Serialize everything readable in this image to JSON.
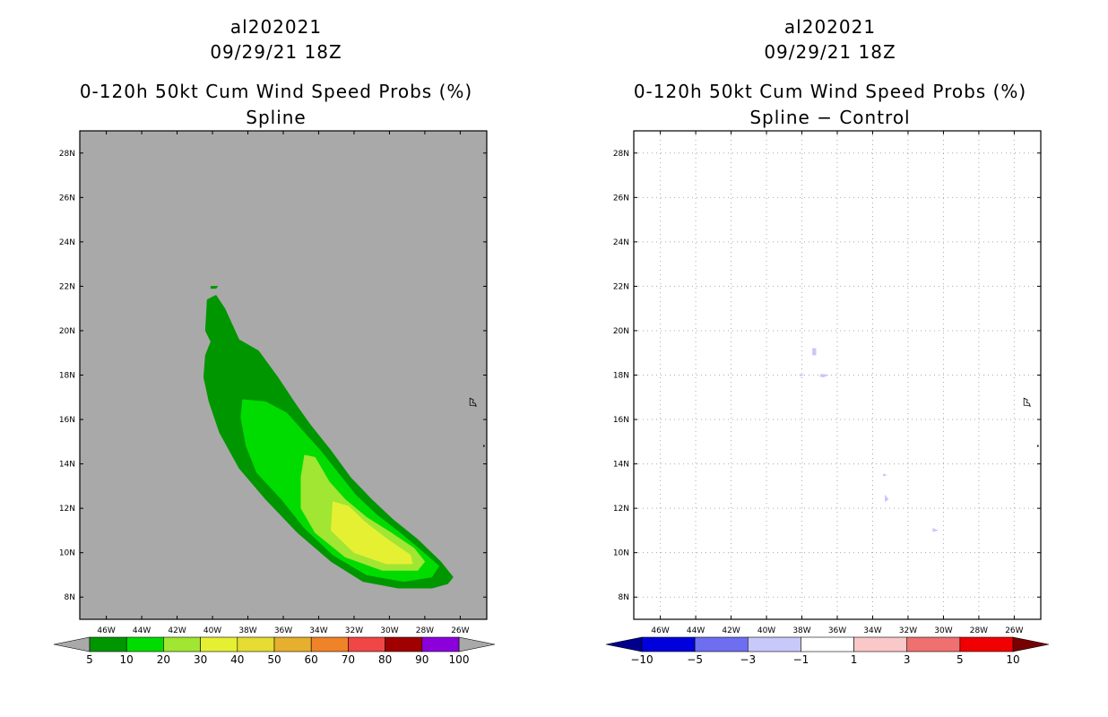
{
  "chart_data": [
    {
      "type": "contour-map",
      "storm_id": "al202021",
      "datetime": "09/29/21 18Z",
      "title": "0-120h 50kt Cum Wind Speed Probs (%)",
      "subtitle": "Spline",
      "lon_range": [
        -47.5,
        -24.5
      ],
      "lat_range": [
        7,
        29
      ],
      "lon_ticks": [
        "46W",
        "44W",
        "42W",
        "40W",
        "38W",
        "36W",
        "34W",
        "32W",
        "30W",
        "28W",
        "26W"
      ],
      "lat_ticks": [
        "8N",
        "10N",
        "12N",
        "14N",
        "16N",
        "18N",
        "20N",
        "22N",
        "24N",
        "26N",
        "28N"
      ],
      "background_color": "#a9a9a9",
      "colorbar": {
        "labels": [
          "5",
          "10",
          "20",
          "30",
          "40",
          "50",
          "60",
          "70",
          "80",
          "90",
          "100"
        ],
        "colors": [
          "#009600",
          "#00dc00",
          "#a0e632",
          "#e6f032",
          "#e6dc32",
          "#e6af2d",
          "#f08228",
          "#f04646",
          "#a00000",
          "#8c00dc"
        ],
        "under_color": "#a9a9a9",
        "over_color": "#a9a9a9"
      },
      "contours": [
        {
          "level": "5-10",
          "color": "#009600",
          "points": [
            [
              -40.3,
              21.4
            ],
            [
              -39.8,
              21.6
            ],
            [
              -39.3,
              21.0
            ],
            [
              -38.5,
              19.6
            ],
            [
              -37.4,
              19.1
            ],
            [
              -36.3,
              17.9
            ],
            [
              -35.3,
              16.7
            ],
            [
              -34.5,
              15.8
            ],
            [
              -33.3,
              14.6
            ],
            [
              -32.2,
              13.4
            ],
            [
              -31.0,
              12.4
            ],
            [
              -29.8,
              11.5
            ],
            [
              -28.4,
              10.6
            ],
            [
              -27.1,
              9.6
            ],
            [
              -26.4,
              8.9
            ],
            [
              -26.7,
              8.6
            ],
            [
              -27.6,
              8.4
            ],
            [
              -29.5,
              8.4
            ],
            [
              -31.5,
              8.7
            ],
            [
              -33.3,
              9.6
            ],
            [
              -35.2,
              10.9
            ],
            [
              -37.0,
              12.4
            ],
            [
              -38.5,
              13.8
            ],
            [
              -39.6,
              15.4
            ],
            [
              -40.2,
              16.8
            ],
            [
              -40.5,
              17.9
            ],
            [
              -40.4,
              18.9
            ],
            [
              -40.1,
              19.5
            ],
            [
              -40.4,
              20.0
            ]
          ]
        },
        {
          "level": "10-20",
          "color": "#00dc00",
          "points": [
            [
              -38.3,
              16.9
            ],
            [
              -37.0,
              16.8
            ],
            [
              -35.8,
              16.3
            ],
            [
              -34.8,
              15.4
            ],
            [
              -33.9,
              14.6
            ],
            [
              -32.9,
              13.6
            ],
            [
              -31.9,
              12.6
            ],
            [
              -30.7,
              11.7
            ],
            [
              -29.4,
              10.9
            ],
            [
              -28.2,
              10.1
            ],
            [
              -27.2,
              9.4
            ],
            [
              -27.6,
              8.9
            ],
            [
              -29.2,
              8.7
            ],
            [
              -31.3,
              9.0
            ],
            [
              -33.2,
              9.9
            ],
            [
              -34.8,
              11.1
            ],
            [
              -36.1,
              12.4
            ],
            [
              -37.5,
              13.6
            ],
            [
              -38.1,
              14.8
            ],
            [
              -38.4,
              16.1
            ]
          ]
        },
        {
          "level": "20-30",
          "color": "#a0e632",
          "points": [
            [
              -34.8,
              14.4
            ],
            [
              -34.2,
              14.3
            ],
            [
              -33.4,
              13.2
            ],
            [
              -32.5,
              12.4
            ],
            [
              -31.3,
              11.6
            ],
            [
              -29.9,
              10.9
            ],
            [
              -28.6,
              10.2
            ],
            [
              -28.0,
              9.6
            ],
            [
              -28.4,
              9.2
            ],
            [
              -30.4,
              9.2
            ],
            [
              -32.5,
              9.8
            ],
            [
              -34.2,
              10.9
            ],
            [
              -35.0,
              12.0
            ],
            [
              -35.0,
              13.4
            ]
          ]
        },
        {
          "level": "30-40",
          "color": "#e6f032",
          "points": [
            [
              -33.2,
              12.3
            ],
            [
              -32.3,
              12.1
            ],
            [
              -31.4,
              11.4
            ],
            [
              -30.1,
              10.6
            ],
            [
              -28.8,
              9.9
            ],
            [
              -28.7,
              9.5
            ],
            [
              -30.2,
              9.5
            ],
            [
              -32.0,
              10.0
            ],
            [
              -33.3,
              11.0
            ]
          ]
        },
        {
          "level": "5-10",
          "color": "#009600",
          "points": [
            [
              -40.1,
              22.0
            ],
            [
              -39.7,
              22.0
            ],
            [
              -39.8,
              21.9
            ],
            [
              -40.1,
              21.9
            ]
          ]
        },
        {
          "level": "5-10",
          "color": "#009600",
          "points": [
            [
              -40.2,
              17.5
            ],
            [
              -39.8,
              17.4
            ],
            [
              -39.9,
              17.3
            ],
            [
              -40.2,
              17.4
            ]
          ]
        }
      ]
    },
    {
      "type": "contour-map",
      "storm_id": "al202021",
      "datetime": "09/29/21 18Z",
      "title": "0-120h 50kt Cum Wind Speed Probs (%)",
      "subtitle": "Spline − Control",
      "lon_range": [
        -47.5,
        -24.5
      ],
      "lat_range": [
        7,
        29
      ],
      "lon_ticks": [
        "46W",
        "44W",
        "42W",
        "40W",
        "38W",
        "36W",
        "34W",
        "32W",
        "30W",
        "28W",
        "26W"
      ],
      "lat_ticks": [
        "8N",
        "10N",
        "12N",
        "14N",
        "16N",
        "18N",
        "20N",
        "22N",
        "24N",
        "26N",
        "28N"
      ],
      "background_color": "#ffffff",
      "gridlines": true,
      "colorbar": {
        "labels": [
          "−10",
          "−5",
          "−3",
          "−1",
          "1",
          "3",
          "5",
          "10"
        ],
        "colors": [
          "#0000dc",
          "#6e6ef0",
          "#c8c8fa",
          "#ffffff",
          "#fac8c8",
          "#f07070",
          "#f00000"
        ],
        "under_color": "#00008c",
        "over_color": "#780000"
      },
      "contours": [
        {
          "level": "-3--1",
          "color": "#c8c8fa",
          "points": [
            [
              -37.4,
              19.2
            ],
            [
              -37.2,
              19.2
            ],
            [
              -37.2,
              18.9
            ],
            [
              -37.4,
              18.9
            ]
          ]
        },
        {
          "level": "-3--1",
          "color": "#c8c8fa",
          "points": [
            [
              -36.9,
              18.05
            ],
            [
              -36.5,
              18.0
            ],
            [
              -36.8,
              17.9
            ],
            [
              -37.0,
              17.95
            ]
          ]
        },
        {
          "level": "-3--1",
          "color": "#c8c8fa",
          "points": [
            [
              -38.1,
              18.05
            ],
            [
              -37.9,
              18.0
            ],
            [
              -38.1,
              17.95
            ]
          ]
        },
        {
          "level": "-3--1",
          "color": "#c8c8fa",
          "points": [
            [
              -33.4,
              13.55
            ],
            [
              -33.2,
              13.5
            ],
            [
              -33.4,
              13.45
            ]
          ]
        },
        {
          "level": "-3--1",
          "color": "#c8c8fa",
          "points": [
            [
              -33.3,
              12.6
            ],
            [
              -33.1,
              12.4
            ],
            [
              -33.3,
              12.3
            ]
          ]
        },
        {
          "level": "-3--1",
          "color": "#c8c8fa",
          "points": [
            [
              -30.6,
              11.1
            ],
            [
              -30.3,
              11.0
            ],
            [
              -30.6,
              10.95
            ]
          ]
        }
      ]
    }
  ]
}
